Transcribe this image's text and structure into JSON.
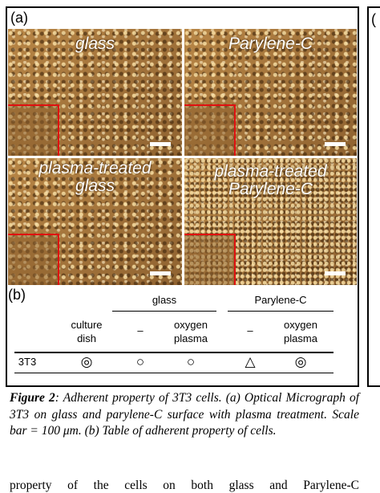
{
  "figure": {
    "panel_a_label": "(a)",
    "micrographs": [
      {
        "lines": [
          "glass"
        ]
      },
      {
        "lines": [
          "Parylene-C"
        ]
      },
      {
        "lines": [
          "plasma-treated",
          "glass"
        ]
      },
      {
        "lines": [
          "plasma-treated",
          "Parylene-C"
        ]
      }
    ],
    "panel_b_label": "(b)",
    "table": {
      "group_headers": [
        "glass",
        "Parylene-C"
      ],
      "columns": [
        [
          "culture",
          "dish"
        ],
        [
          "–"
        ],
        [
          "oxygen",
          "plasma"
        ],
        [
          "–"
        ],
        [
          "oxygen",
          "plasma"
        ]
      ],
      "rows": [
        [
          "3T3",
          "◎",
          "○",
          "○",
          "△",
          "◎"
        ]
      ]
    },
    "caption": {
      "label": "Figure 2",
      "text": ": Adherent property of 3T3 cells. (a) Optical Micrograph of 3T3 on glass and parylene-C surface with plasma treatment. Scale bar = 100 μm. (b) Table of adherent property of cells."
    }
  },
  "body_text": "property of the cells on both glass and Parylene-C",
  "next_panel_label": "("
}
